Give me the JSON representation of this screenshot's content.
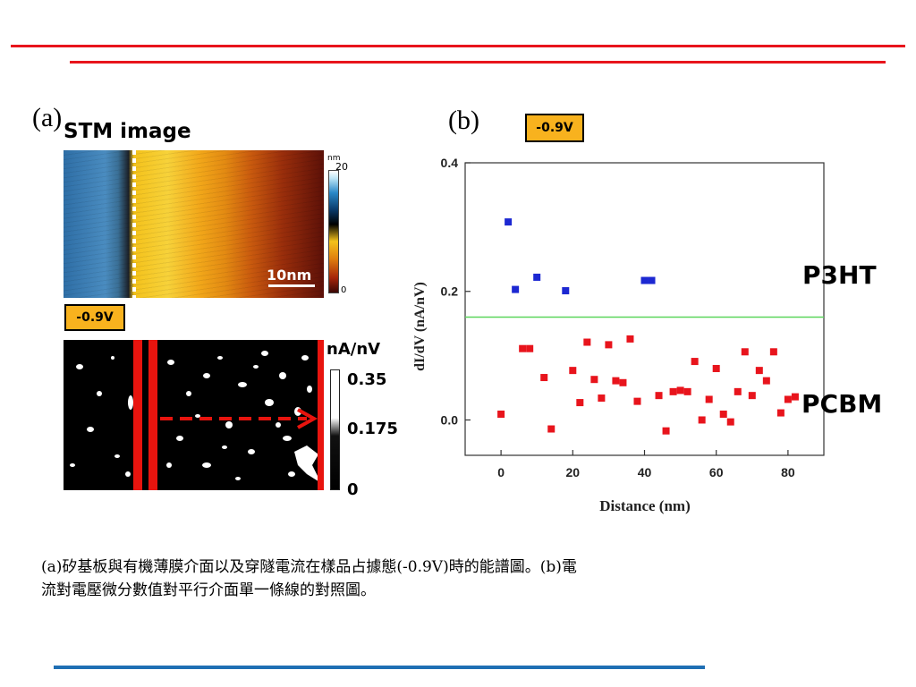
{
  "colors": {
    "top_rule": "#e8141c",
    "bottom_rule": "#1f6fb4",
    "badge": "#f8b21e",
    "pcbm": "#e8141c",
    "p3ht": "#1c28d2",
    "reference_line": "#5cd65c"
  },
  "panel_a": {
    "label": "(a)",
    "title": "STM image",
    "badge": "-0.9V",
    "colorbar_unit": "nm",
    "colorbar_max": "20",
    "colorbar_min": "0",
    "scale_bar": "10nm",
    "current_unit": "nA/nV",
    "current_ticks": [
      "0.35",
      "0.175",
      "0"
    ]
  },
  "panel_b": {
    "label": "(b)",
    "badge": "-0.9V",
    "annotations": [
      "P3HT",
      "PCBM"
    ]
  },
  "chart_data": {
    "type": "scatter",
    "xlabel": "Distance (nm)",
    "ylabel": "dI/dV (nA/nV)",
    "xlim": [
      -10,
      90
    ],
    "ylim": [
      -0.055,
      0.4
    ],
    "xticks": [
      "0",
      "20",
      "40",
      "60",
      "80"
    ],
    "yticks": [
      "0.0",
      "0.2",
      "0.4"
    ],
    "reference_line_y": 0.16,
    "grid": false,
    "series": [
      {
        "name": "P3HT",
        "points": [
          [
            2,
            0.308
          ],
          [
            4,
            0.203
          ],
          [
            10,
            0.222
          ],
          [
            18,
            0.201
          ],
          [
            40,
            0.217
          ],
          [
            42,
            0.217
          ]
        ]
      },
      {
        "name": "PCBM",
        "points": [
          [
            0,
            0.009
          ],
          [
            6,
            0.111
          ],
          [
            8,
            0.111
          ],
          [
            12,
            0.066
          ],
          [
            14,
            -0.014
          ],
          [
            20,
            0.077
          ],
          [
            22,
            0.027
          ],
          [
            24,
            0.121
          ],
          [
            26,
            0.063
          ],
          [
            28,
            0.034
          ],
          [
            30,
            0.117
          ],
          [
            32,
            0.061
          ],
          [
            34,
            0.058
          ],
          [
            36,
            0.126
          ],
          [
            38,
            0.029
          ],
          [
            44,
            0.038
          ],
          [
            46,
            -0.017
          ],
          [
            48,
            0.044
          ],
          [
            50,
            0.046
          ],
          [
            52,
            0.044
          ],
          [
            54,
            0.091
          ],
          [
            56,
            0.0
          ],
          [
            58,
            0.032
          ],
          [
            60,
            0.08
          ],
          [
            62,
            0.009
          ],
          [
            64,
            -0.003
          ],
          [
            66,
            0.044
          ],
          [
            68,
            0.106
          ],
          [
            70,
            0.038
          ],
          [
            72,
            0.077
          ],
          [
            74,
            0.061
          ],
          [
            76,
            0.106
          ],
          [
            78,
            0.011
          ],
          [
            80,
            0.032
          ],
          [
            82,
            0.036
          ]
        ]
      }
    ]
  },
  "caption": {
    "line1": "(a)矽基板與有機薄膜介面以及穿隧電流在樣品占據態(-0.9V)時的能譜圖。(b)電",
    "line2": "流對電壓微分數值對平行介面單一條線的對照圖。"
  }
}
